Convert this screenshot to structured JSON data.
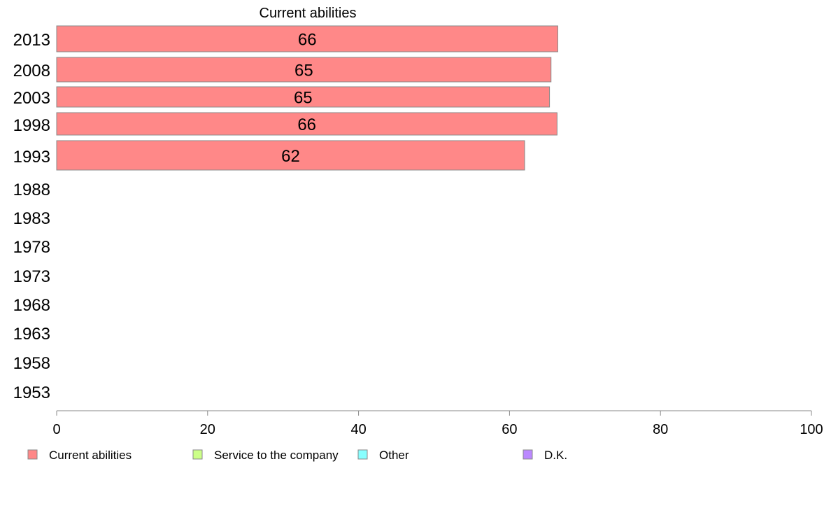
{
  "chart_data": {
    "type": "bar",
    "orientation": "horizontal",
    "title": "Current abilities",
    "categories": [
      "2013",
      "2008",
      "2003",
      "1998",
      "1993",
      "1988",
      "1983",
      "1978",
      "1973",
      "1968",
      "1963",
      "1958",
      "1953"
    ],
    "series": [
      {
        "name": "Current abilities",
        "color": "#ff8888",
        "values": [
          66.4,
          65.5,
          65.3,
          66.3,
          62.0,
          null,
          null,
          null,
          null,
          null,
          null,
          null,
          null
        ]
      }
    ],
    "data_labels": [
      "66",
      "65",
      "65",
      "66",
      "62",
      "",
      "",
      "",
      "",
      "",
      "",
      "",
      ""
    ],
    "xlim": [
      0,
      100
    ],
    "xticks": [
      0,
      20,
      40,
      60,
      80,
      100
    ],
    "grid": false,
    "legend": {
      "position": "bottom",
      "entries": [
        {
          "label": "Current abilities",
          "color": "#ff8888"
        },
        {
          "label": "Service to the company",
          "color": "#ccff88"
        },
        {
          "label": "Other",
          "color": "#88ffff"
        },
        {
          "label": "D.K.",
          "color": "#bb88ff"
        }
      ]
    }
  }
}
